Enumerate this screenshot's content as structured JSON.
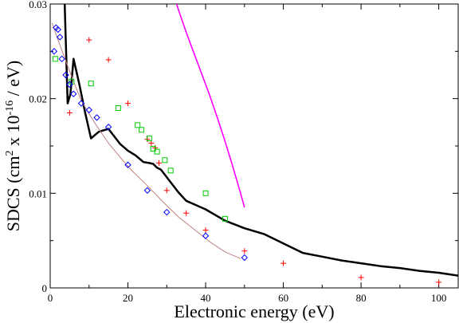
{
  "chart_data": {
    "type": "line",
    "xlabel": "Electronic energy (eV)",
    "ylabel": {
      "pre": "SDCS (cm",
      "sup1": "2",
      "mid": " x 10",
      "sup2": "-16",
      "post": " / eV)"
    },
    "xlim": [
      0,
      105
    ],
    "ylim": [
      0,
      0.03
    ],
    "x_ticks": [
      0,
      20,
      40,
      60,
      80,
      100
    ],
    "y_ticks": [
      0,
      0.01,
      0.02,
      0.03
    ],
    "y_tick_labels": [
      "0",
      "0.01",
      "0.02",
      "0.03"
    ],
    "grid": false,
    "series": [
      {
        "kind": "line",
        "color": "#000000",
        "width": 2.5,
        "x": [
          3.5,
          4.5,
          5.2,
          6.0,
          7.5,
          9.0,
          10.5,
          12.5,
          15.0,
          16.5,
          18.0,
          20.0,
          22.0,
          24.0,
          25.5,
          26.5,
          27.5,
          28.5,
          30.0,
          31.5,
          33.0,
          35.0,
          40.0,
          45.0,
          50.0,
          55.0,
          60.0,
          65.0,
          70.0,
          75.0,
          80.0,
          85.0,
          90.0,
          95.0,
          100.0,
          105.0
        ],
        "y": [
          0.033,
          0.0195,
          0.0205,
          0.0242,
          0.0215,
          0.0185,
          0.0158,
          0.0165,
          0.0168,
          0.016,
          0.0152,
          0.0145,
          0.014,
          0.0133,
          0.0132,
          0.0131,
          0.0127,
          0.0125,
          0.0117,
          0.0109,
          0.0101,
          0.0092,
          0.0083,
          0.0071,
          0.0063,
          0.0057,
          0.0047,
          0.0037,
          0.0033,
          0.0029,
          0.0026,
          0.0023,
          0.0021,
          0.0018,
          0.0016,
          0.0013
        ]
      },
      {
        "kind": "line",
        "color": "#ff00ff",
        "width": 1.6,
        "x": [
          31.0,
          33.0,
          35.0,
          37.0,
          39.0,
          41.0,
          43.0,
          45.0,
          47.0,
          49.0,
          50.0
        ],
        "y": [
          0.032,
          0.0294,
          0.027,
          0.0248,
          0.0226,
          0.0204,
          0.018,
          0.0155,
          0.0128,
          0.01,
          0.0085
        ]
      },
      {
        "kind": "line",
        "color": "#c08080",
        "width": 1.0,
        "x": [
          0.5,
          2.0,
          4.0,
          6.0,
          8.0,
          10.0,
          12.0,
          15.0,
          18.0,
          21.0,
          25.0,
          29.0,
          33.0,
          37.0,
          41.0,
          45.0,
          49.0
        ],
        "y": [
          0.028,
          0.0262,
          0.024,
          0.0218,
          0.0198,
          0.0184,
          0.0171,
          0.0153,
          0.0138,
          0.0124,
          0.0108,
          0.0091,
          0.0075,
          0.0062,
          0.0049,
          0.0038,
          0.0031
        ]
      },
      {
        "kind": "scatter",
        "marker": "plus",
        "color": "#ff0000",
        "x": [
          5,
          10,
          15,
          20,
          25,
          26,
          27,
          28,
          30,
          35,
          40,
          50,
          60,
          80,
          100
        ],
        "y": [
          0.0185,
          0.0262,
          0.0241,
          0.0195,
          0.0157,
          0.0153,
          0.0148,
          0.0132,
          0.0103,
          0.0079,
          0.0061,
          0.0039,
          0.0026,
          0.0011,
          0.0006
        ]
      },
      {
        "kind": "scatter",
        "marker": "square",
        "color": "#00cc00",
        "x": [
          1.3,
          5.5,
          10.5,
          17.5,
          22.5,
          23.5,
          25.5,
          26.5,
          27.5,
          29.5,
          31.0,
          40.0,
          45.0
        ],
        "y": [
          0.0242,
          0.0218,
          0.0216,
          0.019,
          0.0172,
          0.0167,
          0.0158,
          0.0147,
          0.0144,
          0.0135,
          0.0124,
          0.01,
          0.0073
        ]
      },
      {
        "kind": "scatter",
        "marker": "diamond",
        "color": "#0000ff",
        "x": [
          1.0,
          1.5,
          2.0,
          2.5,
          3.0,
          4.0,
          5.0,
          6.0,
          8.0,
          10.0,
          12.0,
          15.0,
          20.0,
          25.0,
          30.0,
          40.0,
          50.0
        ],
        "y": [
          0.025,
          0.0275,
          0.0273,
          0.0265,
          0.0242,
          0.0225,
          0.0215,
          0.0205,
          0.0195,
          0.0188,
          0.018,
          0.017,
          0.013,
          0.0103,
          0.008,
          0.0055,
          0.0032
        ]
      }
    ]
  }
}
